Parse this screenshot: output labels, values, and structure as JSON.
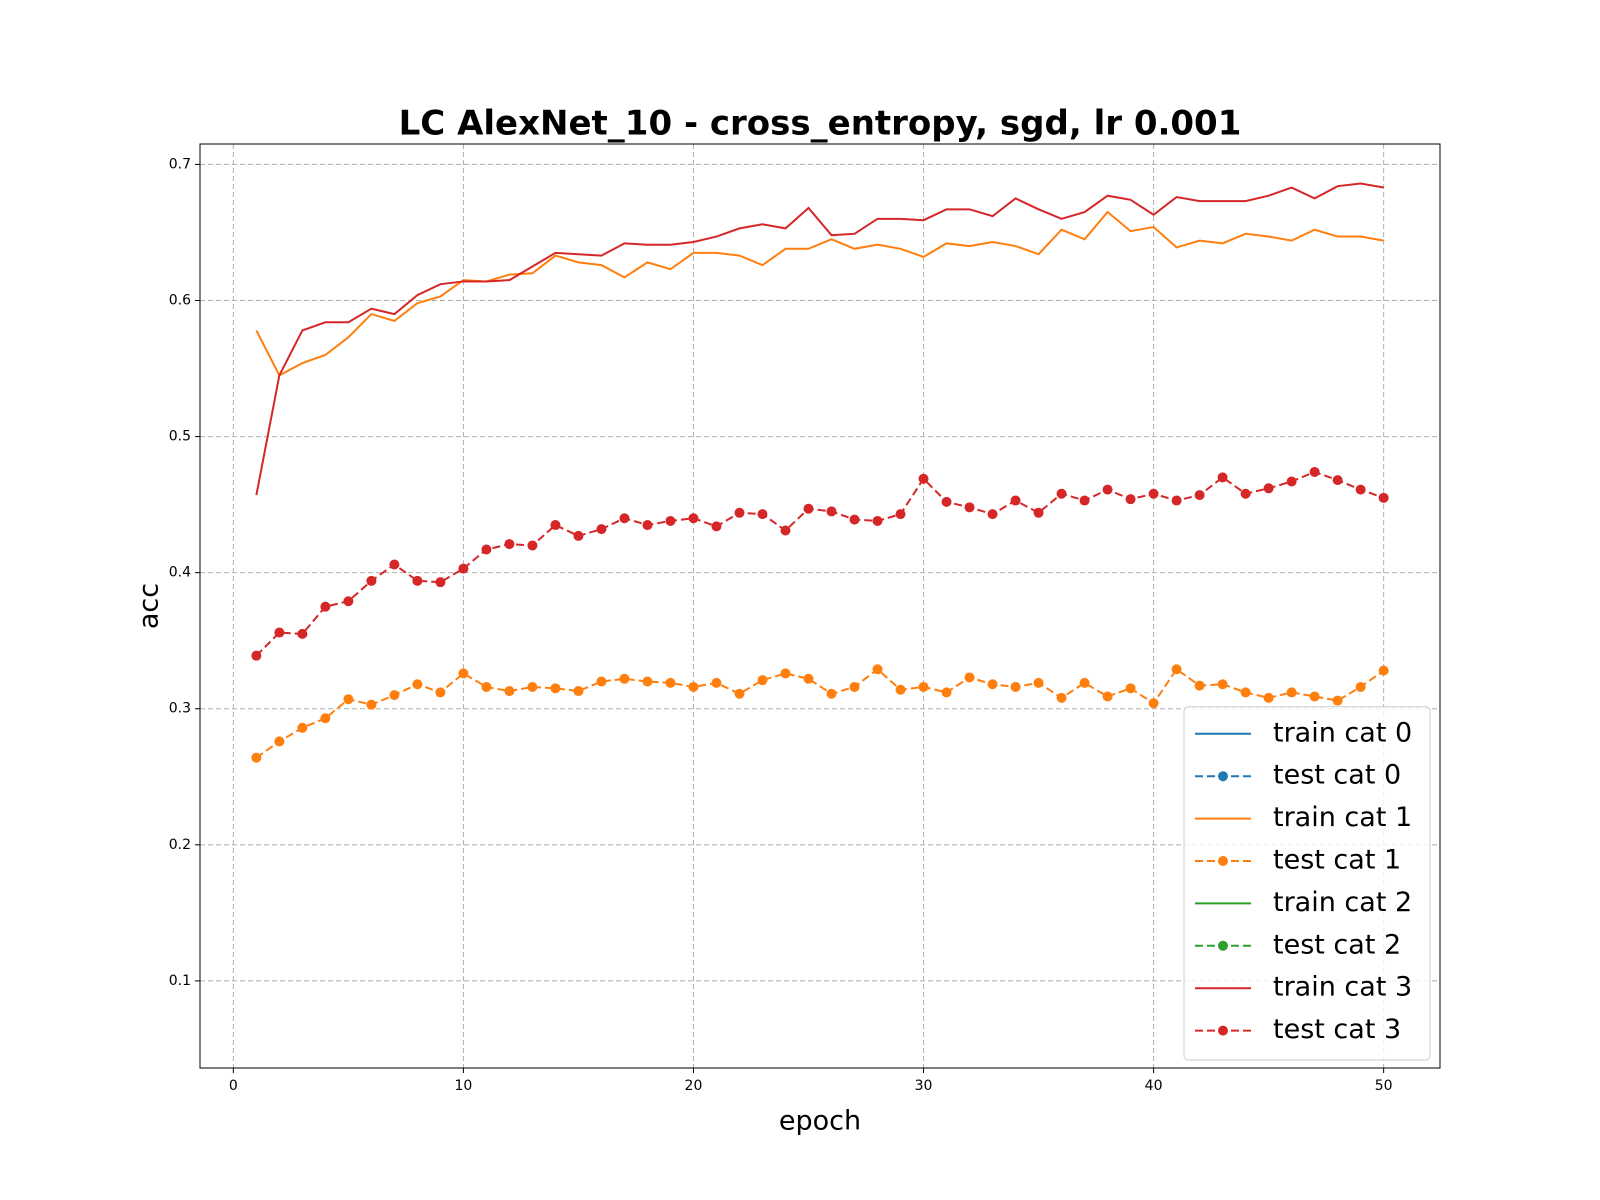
{
  "chart_data": {
    "type": "line",
    "title": "LC AlexNet_10 - cross_entropy, sgd, lr 0.001",
    "x_label": "epoch",
    "y_label": "acc",
    "x": [
      1,
      2,
      3,
      4,
      5,
      6,
      7,
      8,
      9,
      10,
      11,
      12,
      13,
      14,
      15,
      16,
      17,
      18,
      19,
      20,
      21,
      22,
      23,
      24,
      25,
      26,
      27,
      28,
      29,
      30,
      31,
      32,
      33,
      34,
      35,
      36,
      37,
      38,
      39,
      40,
      41,
      42,
      43,
      44,
      45,
      46,
      47,
      48,
      49,
      50
    ],
    "xlim": [
      -1.45,
      52.45
    ],
    "xticks": [
      0,
      10,
      20,
      30,
      40,
      50
    ],
    "ylim": [
      0.036,
      0.715
    ],
    "yticks": [
      0.1,
      0.2,
      0.3,
      0.4,
      0.5,
      0.6,
      0.7
    ],
    "grid": true,
    "legend_location": "lower right",
    "series": [
      {
        "name": "train cat 0",
        "color": "#1f77b4",
        "linestyle": "solid",
        "marker": "none",
        "values": [
          null,
          null,
          null,
          null,
          null,
          null,
          null,
          null,
          null,
          null,
          null,
          null,
          null,
          null,
          null,
          null,
          null,
          null,
          null,
          null,
          null,
          null,
          null,
          null,
          null,
          null,
          null,
          null,
          null,
          null,
          null,
          null,
          null,
          null,
          null,
          null,
          null,
          null,
          null,
          null,
          null,
          null,
          null,
          null,
          null,
          null,
          null,
          null,
          null,
          null
        ]
      },
      {
        "name": "test cat 0",
        "color": "#1f77b4",
        "linestyle": "dashed",
        "marker": "circle",
        "values": [
          null,
          null,
          null,
          null,
          null,
          null,
          null,
          null,
          null,
          null,
          null,
          null,
          null,
          null,
          null,
          null,
          null,
          null,
          null,
          null,
          null,
          null,
          null,
          null,
          null,
          null,
          null,
          null,
          null,
          null,
          null,
          null,
          null,
          null,
          null,
          null,
          null,
          null,
          null,
          null,
          null,
          null,
          null,
          null,
          null,
          null,
          null,
          null,
          null,
          null
        ]
      },
      {
        "name": "train cat 1",
        "color": "#ff7f0e",
        "linestyle": "solid",
        "marker": "none",
        "values": [
          0.578,
          0.545,
          0.554,
          0.56,
          0.573,
          0.59,
          0.585,
          0.598,
          0.603,
          0.615,
          0.614,
          0.619,
          0.62,
          0.633,
          0.628,
          0.626,
          0.617,
          0.628,
          0.623,
          0.635,
          0.635,
          0.633,
          0.626,
          0.638,
          0.638,
          0.645,
          0.638,
          0.641,
          0.638,
          0.632,
          0.642,
          0.64,
          0.643,
          0.64,
          0.634,
          0.652,
          0.645,
          0.665,
          0.651,
          0.654,
          0.639,
          0.644,
          0.642,
          0.649,
          0.647,
          0.644,
          0.652,
          0.647,
          0.647,
          0.644
        ]
      },
      {
        "name": "test cat 1",
        "color": "#ff7f0e",
        "linestyle": "dashed",
        "marker": "circle",
        "values": [
          0.264,
          0.276,
          0.286,
          0.293,
          0.307,
          0.303,
          0.31,
          0.318,
          0.312,
          0.326,
          0.316,
          0.313,
          0.316,
          0.315,
          0.313,
          0.32,
          0.322,
          0.32,
          0.319,
          0.316,
          0.319,
          0.311,
          0.321,
          0.326,
          0.322,
          0.311,
          0.316,
          0.329,
          0.314,
          0.316,
          0.312,
          0.323,
          0.318,
          0.316,
          0.319,
          0.308,
          0.319,
          0.309,
          0.315,
          0.304,
          0.329,
          0.317,
          0.318,
          0.312,
          0.308,
          0.312,
          0.309,
          0.306,
          0.316,
          0.328
        ]
      },
      {
        "name": "train cat 2",
        "color": "#2ca02c",
        "linestyle": "solid",
        "marker": "none",
        "values": [
          null,
          null,
          null,
          null,
          null,
          null,
          null,
          null,
          null,
          null,
          null,
          null,
          null,
          null,
          null,
          null,
          null,
          null,
          null,
          null,
          null,
          null,
          null,
          null,
          null,
          null,
          null,
          null,
          null,
          null,
          null,
          null,
          null,
          null,
          null,
          null,
          null,
          null,
          null,
          null,
          null,
          null,
          null,
          null,
          null,
          null,
          null,
          null,
          null,
          null
        ]
      },
      {
        "name": "test cat 2",
        "color": "#2ca02c",
        "linestyle": "dashed",
        "marker": "circle",
        "values": [
          null,
          null,
          null,
          null,
          null,
          null,
          null,
          null,
          null,
          null,
          null,
          null,
          null,
          null,
          null,
          null,
          null,
          null,
          null,
          null,
          null,
          null,
          null,
          null,
          null,
          null,
          null,
          null,
          null,
          null,
          null,
          null,
          null,
          null,
          null,
          null,
          null,
          null,
          null,
          null,
          null,
          null,
          null,
          null,
          null,
          null,
          null,
          null,
          null,
          null
        ]
      },
      {
        "name": "train cat 3",
        "color": "#d62728",
        "linestyle": "solid",
        "marker": "none",
        "values": [
          0.457,
          0.545,
          0.578,
          0.584,
          0.584,
          0.594,
          0.59,
          0.604,
          0.612,
          0.614,
          0.614,
          0.615,
          0.625,
          0.635,
          0.634,
          0.633,
          0.642,
          0.641,
          0.641,
          0.643,
          0.647,
          0.653,
          0.656,
          0.653,
          0.668,
          0.648,
          0.649,
          0.66,
          0.66,
          0.659,
          0.667,
          0.667,
          0.662,
          0.675,
          0.667,
          0.66,
          0.665,
          0.677,
          0.674,
          0.663,
          0.676,
          0.673,
          0.673,
          0.673,
          0.677,
          0.683,
          0.675,
          0.684,
          0.686,
          0.683
        ]
      },
      {
        "name": "test cat 3",
        "color": "#d62728",
        "linestyle": "dashed",
        "marker": "circle",
        "values": [
          0.339,
          0.356,
          0.355,
          0.375,
          0.379,
          0.394,
          0.406,
          0.394,
          0.393,
          0.403,
          0.417,
          0.421,
          0.42,
          0.435,
          0.427,
          0.432,
          0.44,
          0.435,
          0.438,
          0.44,
          0.434,
          0.444,
          0.443,
          0.431,
          0.447,
          0.445,
          0.439,
          0.438,
          0.443,
          0.469,
          0.452,
          0.448,
          0.443,
          0.453,
          0.444,
          0.458,
          0.453,
          0.461,
          0.454,
          0.458,
          0.453,
          0.457,
          0.47,
          0.458,
          0.462,
          0.467,
          0.474,
          0.468,
          0.461,
          0.455
        ]
      }
    ]
  }
}
